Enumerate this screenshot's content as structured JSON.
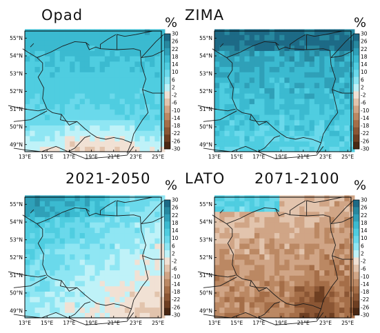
{
  "header": {
    "top_left": "Opad",
    "top_center": "ZIMA",
    "bottom_left": "2021-2050",
    "bottom_center": "LATO",
    "bottom_right": "2071-2100",
    "unit": "%"
  },
  "axes": {
    "lon_labels": [
      "13°E",
      "15°E",
      "17°E",
      "19°E",
      "21°E",
      "23°E",
      "25°E"
    ],
    "lat_labels": [
      "55°N",
      "54°N",
      "53°N",
      "52°N",
      "51°N",
      "50°N",
      "49°N"
    ]
  },
  "colorbar": {
    "labels": [
      "30",
      "26",
      "22",
      "18",
      "14",
      "10",
      "6",
      "2",
      "-2",
      "-6",
      "-10",
      "-14",
      "-18",
      "-22",
      "-26",
      "-30"
    ],
    "colors": [
      "#1d6a86",
      "#27889f",
      "#2fa0b8",
      "#3bbad0",
      "#4fcde0",
      "#6ad9eb",
      "#8fe6f3",
      "#bff2f8",
      "#f1e1d4",
      "#e2c4ad",
      "#d0a586",
      "#bb8863",
      "#a56e48",
      "#8b5634",
      "#6e3f22",
      "#4a2814"
    ]
  },
  "panels": [
    {
      "name": "winter-2021-2050",
      "season": "ZIMA",
      "period": "2021-2050",
      "pattern": "w1"
    },
    {
      "name": "winter-2071-2100",
      "season": "ZIMA",
      "period": "2071-2100",
      "pattern": "w2"
    },
    {
      "name": "summer-2021-2050",
      "season": "LATO",
      "period": "2021-2050",
      "pattern": "s1"
    },
    {
      "name": "summer-2071-2100",
      "season": "LATO",
      "period": "2071-2100",
      "pattern": "s2"
    }
  ]
}
